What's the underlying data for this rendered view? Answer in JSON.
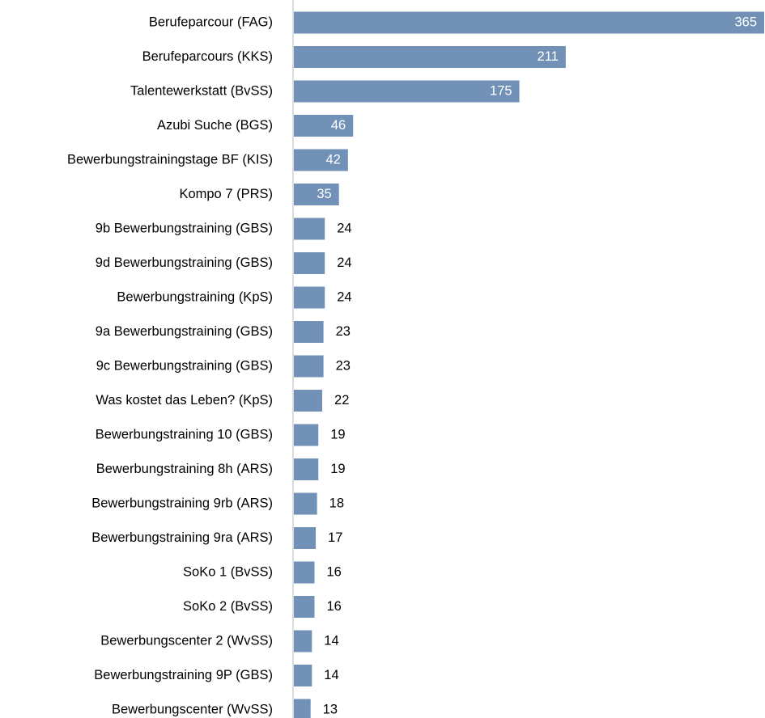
{
  "chart_data": {
    "type": "bar",
    "orientation": "horizontal",
    "categories": [
      "Berufeparcour (FAG)",
      "Berufeparcours (KKS)",
      "Talentewerkstatt (BvSS)",
      "Azubi Suche (BGS)",
      "Bewerbungstrainingstage BF (KIS)",
      "Kompo 7 (PRS)",
      "9b Bewerbungstraining (GBS)",
      "9d Bewerbungstraining (GBS)",
      "Bewerbungstraining (KpS)",
      "9a Bewerbungstraining (GBS)",
      "9c Bewerbungstraining (GBS)",
      "Was kostet das Leben? (KpS)",
      "Bewerbungstraining 10 (GBS)",
      "Bewerbungstraining 8h (ARS)",
      "Bewerbungstraining 9rb (ARS)",
      "Bewerbungstraining 9ra (ARS)",
      "SoKo 1 (BvSS)",
      "SoKo 2 (BvSS)",
      "Bewerbungscenter 2 (WvSS)",
      "Bewerbungstraining 9P (GBS)",
      "Bewerbungscenter (WvSS)"
    ],
    "values": [
      365,
      211,
      175,
      46,
      42,
      35,
      24,
      24,
      24,
      23,
      23,
      22,
      19,
      19,
      18,
      17,
      16,
      16,
      14,
      14,
      13
    ],
    "color": "#7191b6"
  }
}
